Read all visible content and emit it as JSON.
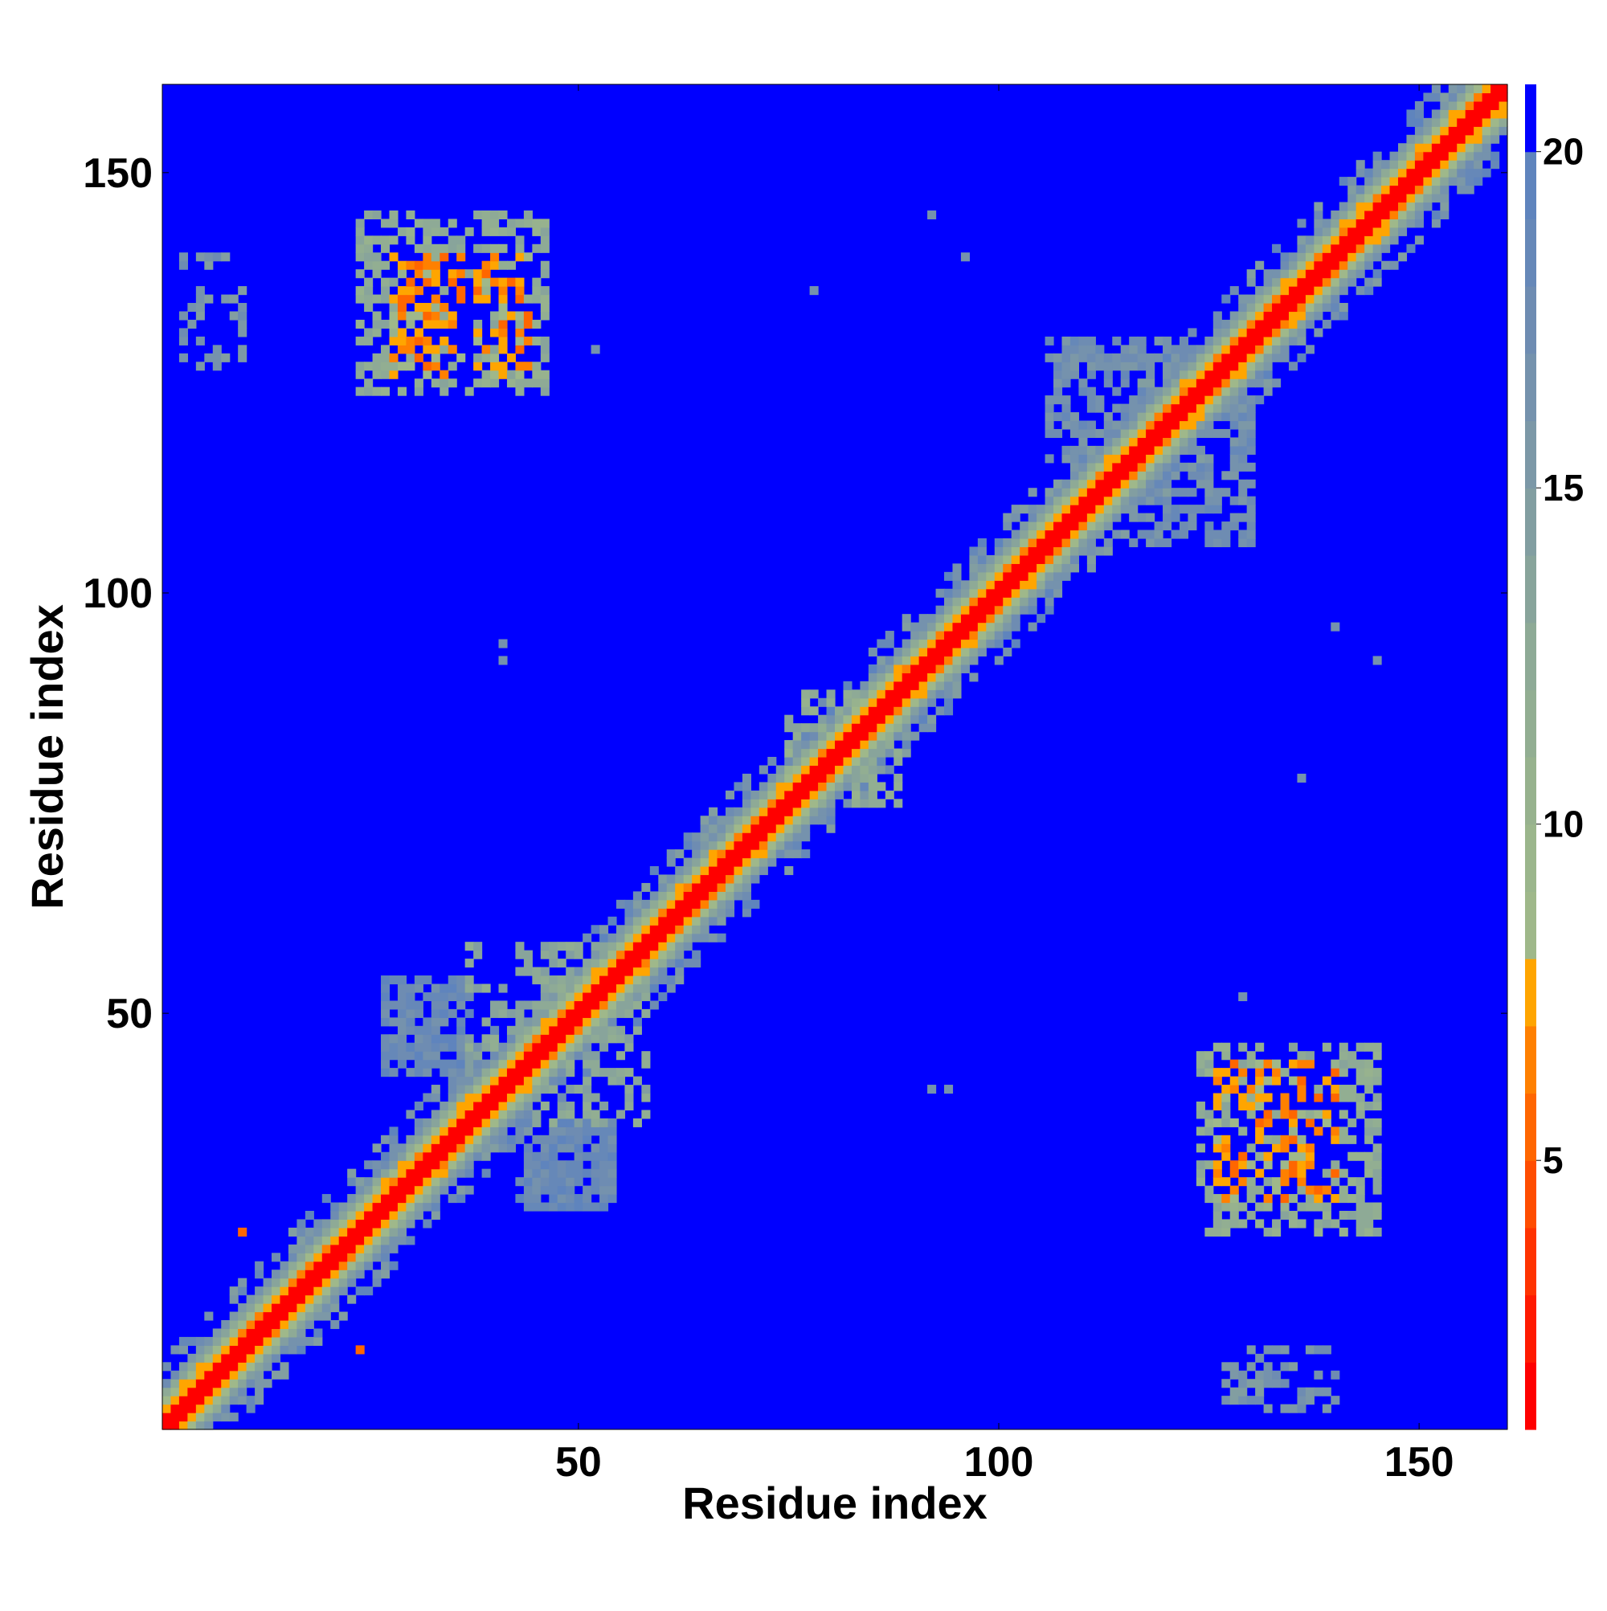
{
  "chart_data": {
    "type": "heatmap",
    "title": "",
    "xlabel": "Residue index",
    "ylabel": "Residue index",
    "n_residues": 160,
    "xlim": [
      1,
      160
    ],
    "ylim": [
      1,
      160
    ],
    "xticks": [
      50,
      100,
      150
    ],
    "yticks": [
      50,
      100,
      150
    ],
    "colorbar": {
      "ticks": [
        5,
        10,
        15,
        20
      ],
      "range": [
        1,
        21
      ],
      "bands": [
        {
          "max": 2,
          "color": "#ff0000"
        },
        {
          "max": 3,
          "color": "#ff1a00"
        },
        {
          "max": 4,
          "color": "#ff3300"
        },
        {
          "max": 5,
          "color": "#ff4d00"
        },
        {
          "max": 6,
          "color": "#ff6600"
        },
        {
          "max": 7,
          "color": "#ff8000"
        },
        {
          "max": 8,
          "color": "#ffa500"
        },
        {
          "max": 9,
          "color": "#9fb88a"
        },
        {
          "max": 10,
          "color": "#9bb68c"
        },
        {
          "max": 11,
          "color": "#97b28e"
        },
        {
          "max": 12,
          "color": "#92ae92"
        },
        {
          "max": 13,
          "color": "#8eaa96"
        },
        {
          "max": 14,
          "color": "#88a49b"
        },
        {
          "max": 15,
          "color": "#829ea1"
        },
        {
          "max": 16,
          "color": "#7c98a7"
        },
        {
          "max": 17,
          "color": "#7592ad"
        },
        {
          "max": 18,
          "color": "#6e8cb2"
        },
        {
          "max": 19,
          "color": "#6688b8"
        },
        {
          "max": 20,
          "color": "#5f84bd"
        },
        {
          "max": 21,
          "color": "#0000ff"
        }
      ]
    },
    "background_value": 21,
    "diagonal_band": {
      "start": 1,
      "end": 160,
      "core_width": 1.4,
      "inner_width": 3.2,
      "outer_width": 5.5
    },
    "contact_regions": [
      {
        "x": [
          126,
          140
        ],
        "y": [
          28,
          44
        ],
        "value": 7,
        "density": 0.45
      },
      {
        "x": [
          124,
          145
        ],
        "y": [
          24,
          46
        ],
        "value": 12,
        "density": 0.55
      },
      {
        "x": [
          28,
          44
        ],
        "y": [
          126,
          140
        ],
        "value": 7,
        "density": 0.45
      },
      {
        "x": [
          24,
          46
        ],
        "y": [
          124,
          145
        ],
        "value": 12,
        "density": 0.55
      },
      {
        "x": [
          27,
          37
        ],
        "y": [
          43,
          54
        ],
        "value": 18,
        "density": 0.8
      },
      {
        "x": [
          43,
          54
        ],
        "y": [
          27,
          37
        ],
        "value": 18,
        "density": 0.8
      },
      {
        "x": [
          37,
          55
        ],
        "y": [
          45,
          58
        ],
        "value": 13,
        "density": 0.45
      },
      {
        "x": [
          45,
          58
        ],
        "y": [
          37,
          55
        ],
        "value": 13,
        "density": 0.45
      },
      {
        "x": [
          106,
          123
        ],
        "y": [
          116,
          130
        ],
        "value": 17,
        "density": 0.6
      },
      {
        "x": [
          116,
          130
        ],
        "y": [
          106,
          123
        ],
        "value": 17,
        "density": 0.6
      },
      {
        "x": [
          127,
          140
        ],
        "y": [
          3,
          10
        ],
        "value": 16,
        "density": 0.35
      },
      {
        "x": [
          3,
          10
        ],
        "y": [
          127,
          140
        ],
        "value": 16,
        "density": 0.35
      },
      {
        "x": [
          75,
          84
        ],
        "y": [
          79,
          88
        ],
        "value": 12,
        "density": 0.5
      },
      {
        "x": [
          79,
          88
        ],
        "y": [
          75,
          84
        ],
        "value": 12,
        "density": 0.5
      }
    ],
    "scattered_points": [
      {
        "x": 41,
        "y": 94,
        "value": 17
      },
      {
        "x": 94,
        "y": 41,
        "value": 17
      },
      {
        "x": 92,
        "y": 41,
        "value": 17
      },
      {
        "x": 41,
        "y": 92,
        "value": 17
      },
      {
        "x": 129,
        "y": 52,
        "value": 17
      },
      {
        "x": 52,
        "y": 129,
        "value": 17
      },
      {
        "x": 10,
        "y": 24,
        "value": 6
      },
      {
        "x": 24,
        "y": 10,
        "value": 6
      },
      {
        "x": 136,
        "y": 78,
        "value": 17
      },
      {
        "x": 78,
        "y": 136,
        "value": 17
      },
      {
        "x": 140,
        "y": 96,
        "value": 17
      },
      {
        "x": 96,
        "y": 140,
        "value": 17
      },
      {
        "x": 92,
        "y": 145,
        "value": 17
      },
      {
        "x": 145,
        "y": 92,
        "value": 17
      }
    ]
  }
}
